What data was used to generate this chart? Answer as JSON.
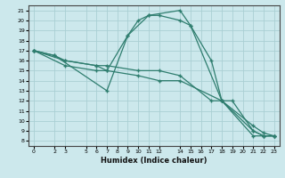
{
  "title": "",
  "xlabel": "Humidex (Indice chaleur)",
  "bg_color": "#cce8ec",
  "line_color": "#2e7d6e",
  "grid_color": "#aacfd4",
  "xlim": [
    -0.5,
    23.5
  ],
  "ylim": [
    7.5,
    21.5
  ],
  "xticks": [
    0,
    2,
    3,
    5,
    6,
    7,
    8,
    9,
    10,
    11,
    12,
    14,
    15,
    16,
    17,
    18,
    19,
    20,
    21,
    22,
    23
  ],
  "yticks": [
    8,
    9,
    10,
    11,
    12,
    13,
    14,
    15,
    16,
    17,
    18,
    19,
    20,
    21
  ],
  "lines": [
    {
      "x": [
        0,
        2,
        7,
        9,
        10,
        11,
        14,
        15,
        17,
        18,
        21,
        22,
        23
      ],
      "y": [
        17,
        16.5,
        13,
        18.5,
        20,
        20.5,
        21,
        19.5,
        16,
        12,
        8.5,
        8.5,
        8.5
      ]
    },
    {
      "x": [
        0,
        3,
        6,
        7,
        9,
        11,
        12,
        14,
        15,
        18,
        19,
        21,
        22,
        23
      ],
      "y": [
        17,
        16,
        15.5,
        15,
        18.5,
        20.5,
        20.5,
        20,
        19.5,
        12,
        12,
        9.0,
        8.5,
        8.5
      ]
    },
    {
      "x": [
        0,
        2,
        3,
        6,
        7,
        10,
        12,
        14,
        17,
        18,
        21,
        22,
        23
      ],
      "y": [
        17,
        16.5,
        16,
        15.5,
        15.5,
        15,
        15,
        14.5,
        12,
        12,
        9.5,
        8.8,
        8.5
      ]
    },
    {
      "x": [
        0,
        3,
        6,
        7,
        10,
        12,
        14,
        18,
        21,
        22,
        23
      ],
      "y": [
        17,
        15.5,
        15,
        15,
        14.5,
        14,
        14,
        12,
        9.0,
        8.5,
        8.5
      ]
    }
  ]
}
